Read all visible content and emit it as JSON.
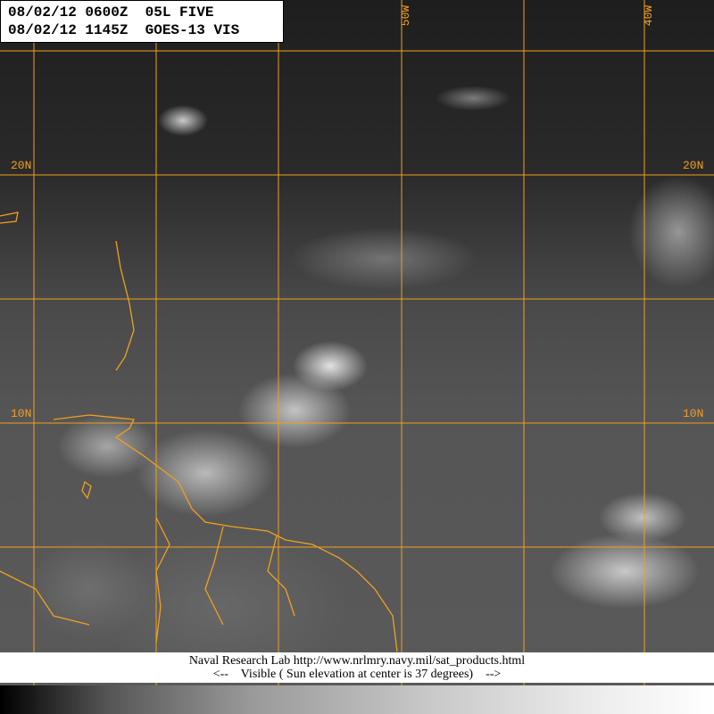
{
  "header": {
    "line1": "08/02/12 0600Z  05L FIVE",
    "line2": "08/02/12 1145Z  GOES-13 VIS"
  },
  "grid": {
    "color": "#f0a020",
    "lat_labels": [
      "20N",
      "10N"
    ],
    "lon_labels": [
      "50W",
      "40W"
    ]
  },
  "footer": {
    "line1": "Naval Research Lab http://www.nrlmry.navy.mil/sat_products.html",
    "line2": "<--    Visible ( Sun elevation at center is 37 degrees)    -->"
  },
  "colorbar": {
    "from": "#000000",
    "to": "#ffffff"
  }
}
